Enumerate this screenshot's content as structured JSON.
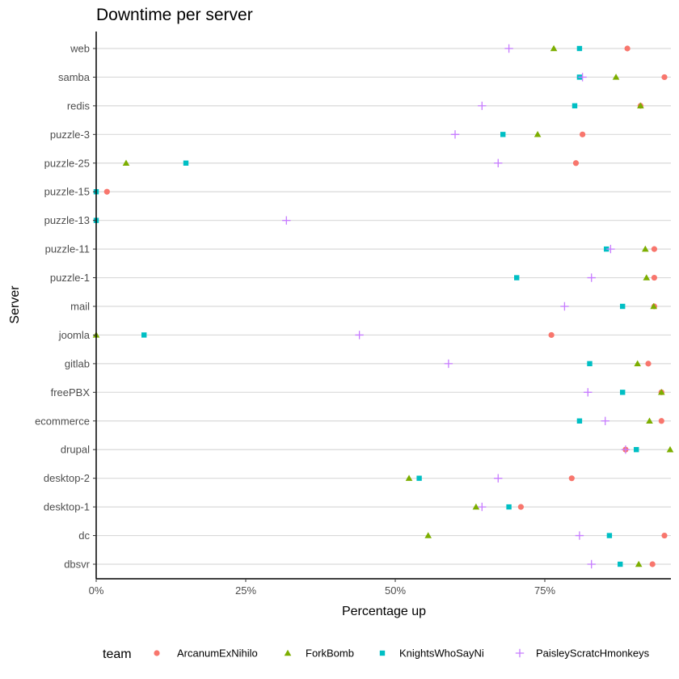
{
  "chart_data": {
    "type": "scatter",
    "title": "Downtime per server",
    "xlabel": "Percentage up",
    "ylabel": "Server",
    "xlim": [
      0,
      0.96
    ],
    "xticks": [
      0,
      0.25,
      0.5,
      0.75
    ],
    "xtick_labels": [
      "0%",
      "25%",
      "50%",
      "75%"
    ],
    "grid": "horizontal major lines",
    "legend_position": "bottom",
    "legend_title": "team",
    "categories": [
      "dbsvr",
      "dc",
      "desktop-1",
      "desktop-2",
      "drupal",
      "ecommerce",
      "freePBX",
      "gitlab",
      "joomla",
      "mail",
      "puzzle-1",
      "puzzle-11",
      "puzzle-13",
      "puzzle-15",
      "puzzle-25",
      "puzzle-3",
      "redis",
      "samba",
      "web"
    ],
    "series": [
      {
        "name": "ArcanumExNihilo",
        "shape": "circle",
        "color": "#F8766D",
        "values": [
          0.93,
          0.95,
          0.71,
          0.795,
          0.885,
          0.945,
          0.945,
          0.923,
          0.761,
          0.933,
          0.933,
          0.933,
          null,
          0.018,
          0.802,
          0.813,
          0.91,
          0.95,
          0.888
        ]
      },
      {
        "name": "ForkBomb",
        "shape": "triangle",
        "color": "#7CAE00",
        "values": [
          0.907,
          0.555,
          0.635,
          0.523,
          0.96,
          0.925,
          0.945,
          0.905,
          0.0,
          0.932,
          0.92,
          0.918,
          null,
          null,
          0.05,
          0.738,
          0.91,
          0.869,
          0.765
        ]
      },
      {
        "name": "KnightsWhoSayNi",
        "shape": "square",
        "color": "#00BFC4",
        "values": [
          0.876,
          0.858,
          0.69,
          0.54,
          0.903,
          0.808,
          0.88,
          0.825,
          0.08,
          0.88,
          0.703,
          0.853,
          0.0,
          0.0,
          0.15,
          0.68,
          0.8,
          0.808,
          0.808
        ]
      },
      {
        "name": "PaisleyScratcHmonkeys",
        "shape": "plus",
        "color": "#C77CFF",
        "values": [
          0.828,
          0.808,
          0.645,
          0.672,
          0.885,
          0.851,
          0.822,
          0.589,
          0.44,
          0.783,
          0.828,
          0.86,
          0.318,
          null,
          0.672,
          0.6,
          0.645,
          0.813,
          0.69
        ]
      }
    ]
  }
}
